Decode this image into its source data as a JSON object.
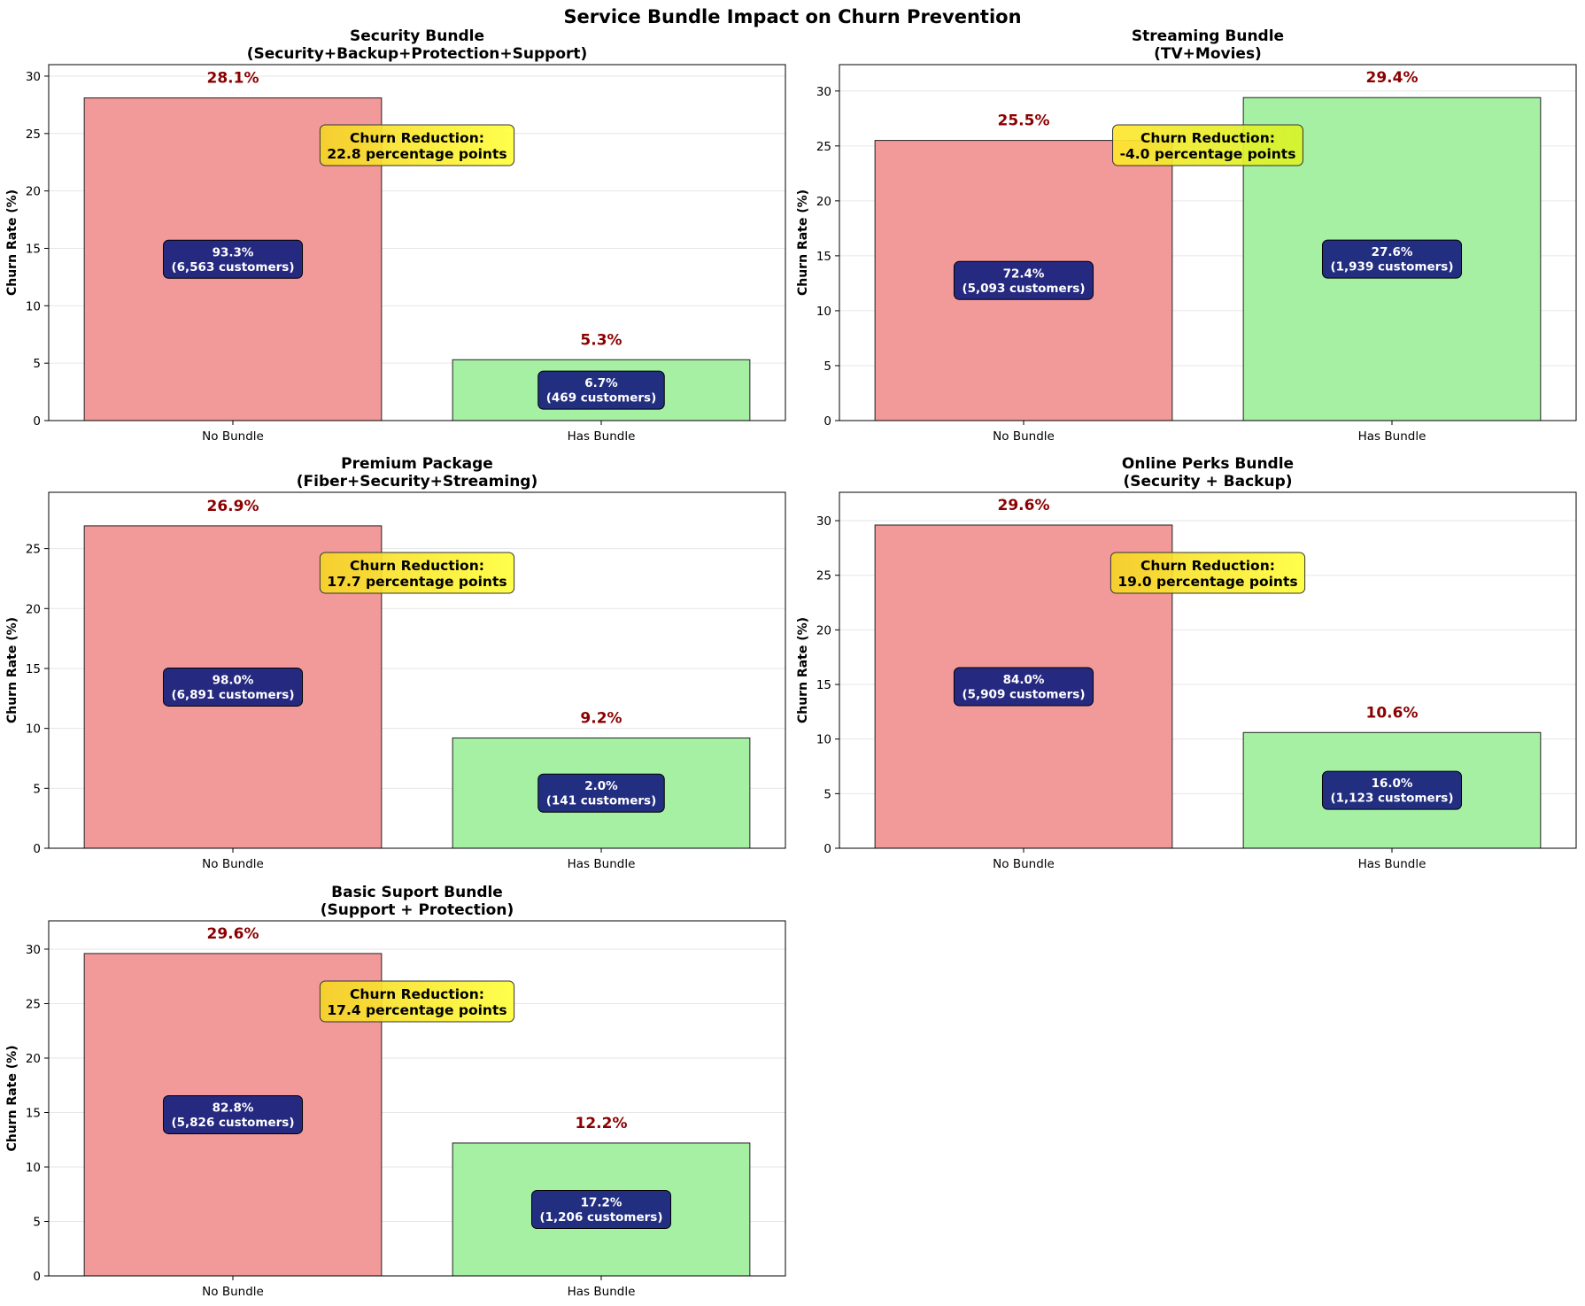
{
  "suptitle": "Service Bundle Impact on Churn Prevention",
  "colors": {
    "no_bundle": "#f29a9a",
    "has_bundle": "#a6f0a4",
    "value_label": "#8b0000",
    "count_box": "#1a237e",
    "reduction_box_left": "#f5d327",
    "reduction_box_right": "#ffff3c"
  },
  "chart_data": [
    {
      "type": "bar",
      "title": "Security Bundle",
      "subtitle": "(Security+Backup+Protection+Support)",
      "categories": [
        "No Bundle",
        "Has Bundle"
      ],
      "values": [
        28.1,
        5.3
      ],
      "value_labels": [
        "28.1%",
        "5.3%"
      ],
      "share_labels": [
        "93.3%",
        "6.7%"
      ],
      "customer_labels": [
        "(6,563 customers)",
        "(469 customers)"
      ],
      "reduction_title": "Churn Reduction:",
      "reduction_text": "22.8 percentage points",
      "ylabel": "Churn Rate (%)",
      "ylim": [
        0,
        31
      ],
      "yticks": [
        0,
        5,
        10,
        15,
        20,
        25,
        30
      ],
      "grid": true
    },
    {
      "type": "bar",
      "title": "Streaming Bundle",
      "subtitle": "(TV+Movies)",
      "categories": [
        "No Bundle",
        "Has Bundle"
      ],
      "values": [
        25.5,
        29.4
      ],
      "value_labels": [
        "25.5%",
        "29.4%"
      ],
      "share_labels": [
        "72.4%",
        "27.6%"
      ],
      "customer_labels": [
        "(5,093 customers)",
        "(1,939 customers)"
      ],
      "reduction_title": "Churn Reduction:",
      "reduction_text": "-4.0 percentage points",
      "ylabel": "Churn Rate (%)",
      "ylim": [
        0,
        32.4
      ],
      "yticks": [
        0,
        5,
        10,
        15,
        20,
        25,
        30
      ],
      "grid": true
    },
    {
      "type": "bar",
      "title": "Premium Package",
      "subtitle": "(Fiber+Security+Streaming)",
      "categories": [
        "No Bundle",
        "Has Bundle"
      ],
      "values": [
        26.9,
        9.2
      ],
      "value_labels": [
        "26.9%",
        "9.2%"
      ],
      "share_labels": [
        "98.0%",
        "2.0%"
      ],
      "customer_labels": [
        "(6,891 customers)",
        "(141 customers)"
      ],
      "reduction_title": "Churn Reduction:",
      "reduction_text": "17.7 percentage points",
      "ylabel": "Churn Rate (%)",
      "ylim": [
        0,
        29.7
      ],
      "yticks": [
        0,
        5,
        10,
        15,
        20,
        25
      ],
      "grid": true
    },
    {
      "type": "bar",
      "title": "Online Perks Bundle",
      "subtitle": "(Security + Backup)",
      "categories": [
        "No Bundle",
        "Has Bundle"
      ],
      "values": [
        29.6,
        10.6
      ],
      "value_labels": [
        "29.6%",
        "10.6%"
      ],
      "share_labels": [
        "84.0%",
        "16.0%"
      ],
      "customer_labels": [
        "(5,909 customers)",
        "(1,123 customers)"
      ],
      "reduction_title": "Churn Reduction:",
      "reduction_text": "19.0 percentage points",
      "ylabel": "Churn Rate (%)",
      "ylim": [
        0,
        32.6
      ],
      "yticks": [
        0,
        5,
        10,
        15,
        20,
        25,
        30
      ],
      "grid": true
    },
    {
      "type": "bar",
      "title": "Basic Suport Bundle",
      "subtitle": "(Support + Protection)",
      "categories": [
        "No Bundle",
        "Has Bundle"
      ],
      "values": [
        29.6,
        12.2
      ],
      "value_labels": [
        "29.6%",
        "12.2%"
      ],
      "share_labels": [
        "82.8%",
        "17.2%"
      ],
      "customer_labels": [
        "(5,826 customers)",
        "(1,206 customers)"
      ],
      "reduction_title": "Churn Reduction:",
      "reduction_text": "17.4 percentage points",
      "ylabel": "Churn Rate (%)",
      "ylim": [
        0,
        32.6
      ],
      "yticks": [
        0,
        5,
        10,
        15,
        20,
        25,
        30
      ],
      "grid": true
    }
  ]
}
